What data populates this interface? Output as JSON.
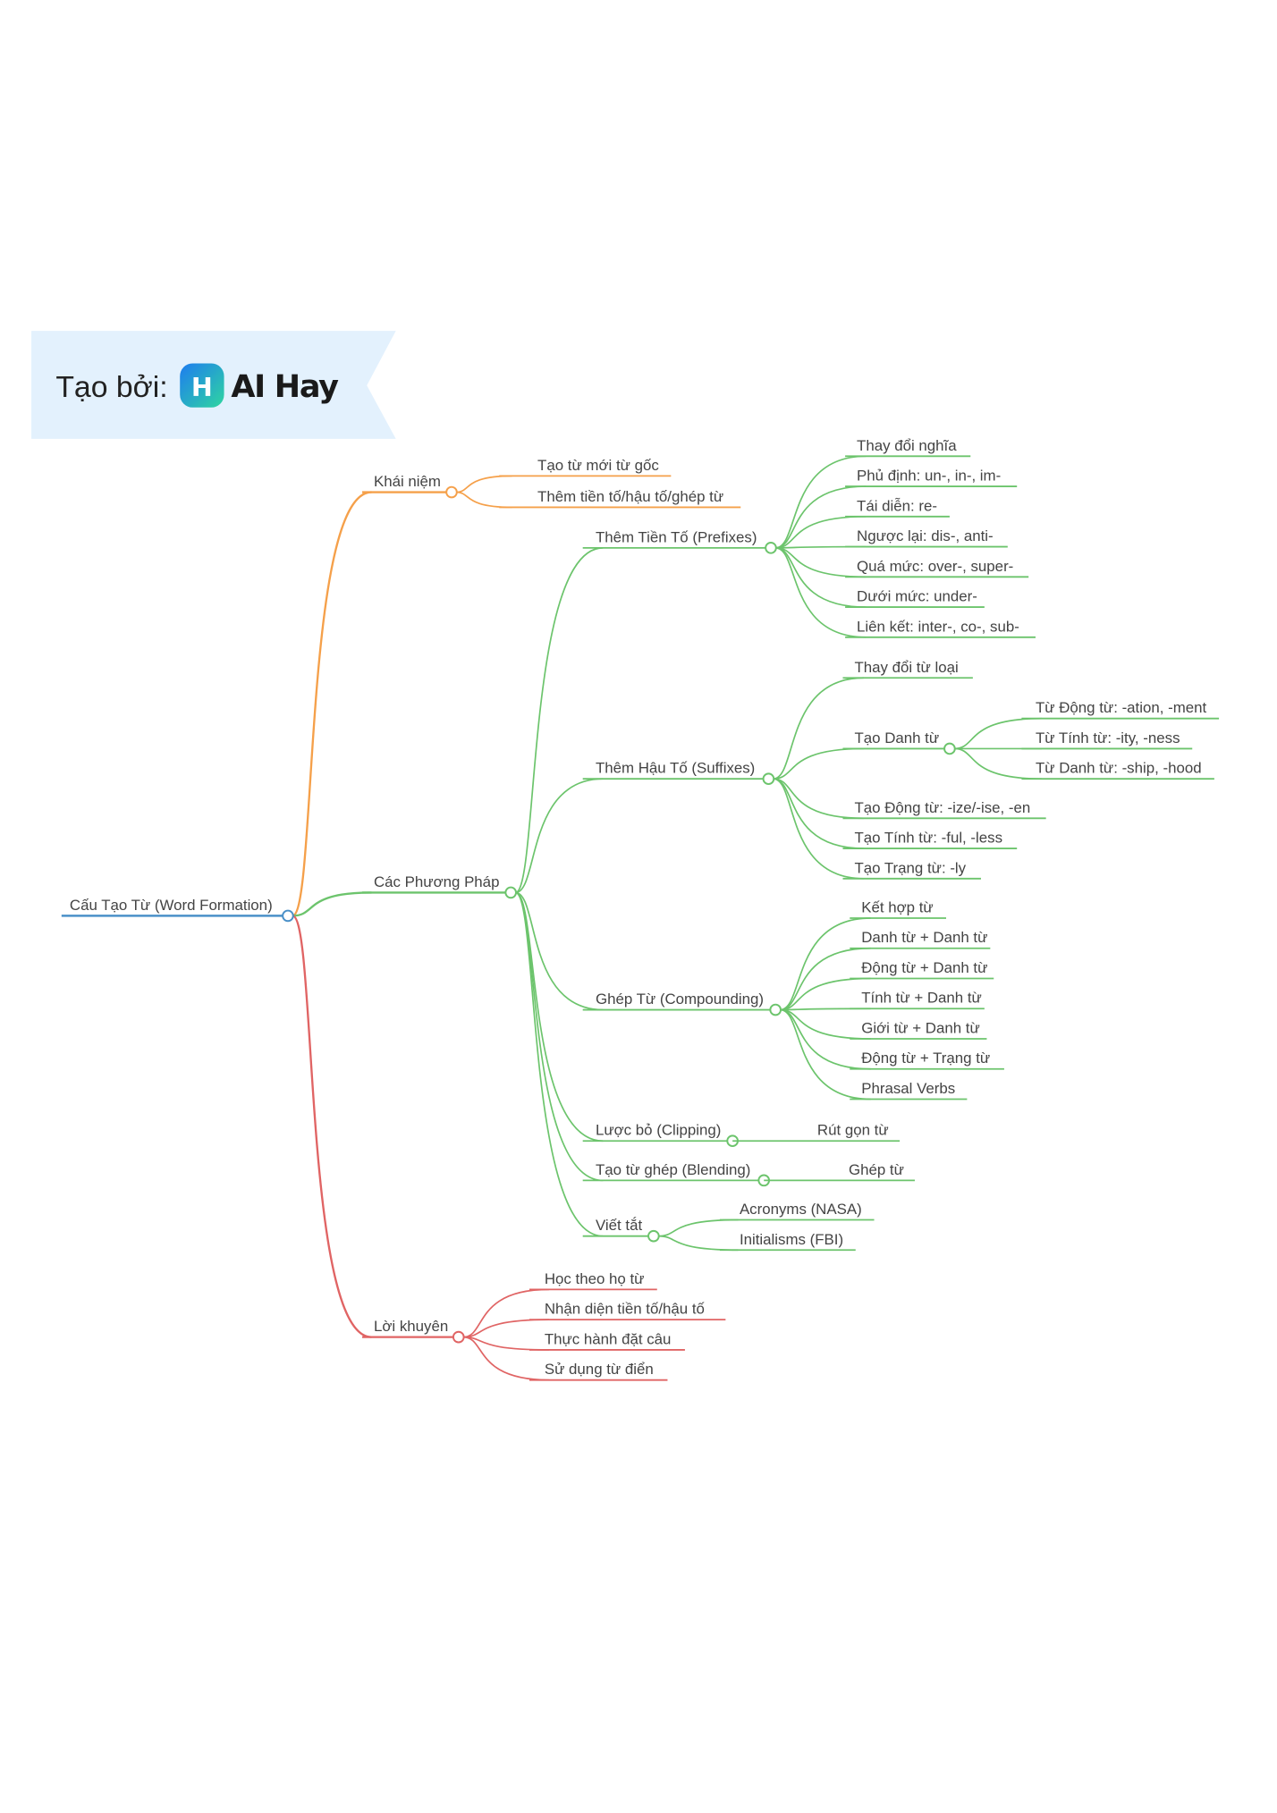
{
  "banner": {
    "created_by": "Tạo bởi:",
    "brand": "AI Hay",
    "logo_letter": "H",
    "background": "#e3f1fd"
  },
  "colors": {
    "root": "#4a90c8",
    "branch_1": "#f5a04a",
    "branch_2": "#6cc46c",
    "branch_3": "#e06464"
  },
  "mindmap": {
    "label": "Cấu Tạo Từ (Word Formation)",
    "children": [
      {
        "label": "Khái niệm",
        "children": [
          {
            "label": "Tạo từ mới từ gốc"
          },
          {
            "label": "Thêm tiền tố/hậu tố/ghép từ"
          }
        ]
      },
      {
        "label": "Các Phương Pháp",
        "children": [
          {
            "label": "Thêm Tiền Tố (Prefixes)",
            "children": [
              {
                "label": "Thay đổi nghĩa"
              },
              {
                "label": "Phủ định: un-, in-, im-"
              },
              {
                "label": "Tái diễn: re-"
              },
              {
                "label": "Ngược lại: dis-, anti-"
              },
              {
                "label": "Quá mức: over-, super-"
              },
              {
                "label": "Dưới mức: under-"
              },
              {
                "label": "Liên kết: inter-, co-, sub-"
              }
            ]
          },
          {
            "label": "Thêm Hậu Tố (Suffixes)",
            "children": [
              {
                "label": "Thay đổi từ loại"
              },
              {
                "label": "Tạo Danh từ",
                "children": [
                  {
                    "label": "Từ Động từ: -ation, -ment"
                  },
                  {
                    "label": "Từ Tính từ: -ity, -ness"
                  },
                  {
                    "label": "Từ Danh từ: -ship, -hood"
                  }
                ]
              },
              {
                "label": "Tạo Động từ: -ize/-ise, -en"
              },
              {
                "label": "Tạo Tính từ: -ful, -less"
              },
              {
                "label": "Tạo Trạng từ: -ly"
              }
            ]
          },
          {
            "label": "Ghép Từ (Compounding)",
            "children": [
              {
                "label": "Kết hợp từ"
              },
              {
                "label": "Danh từ + Danh từ"
              },
              {
                "label": "Động từ + Danh từ"
              },
              {
                "label": "Tính từ + Danh từ"
              },
              {
                "label": "Giới từ + Danh từ"
              },
              {
                "label": "Động từ + Trạng từ"
              },
              {
                "label": "Phrasal Verbs"
              }
            ]
          },
          {
            "label": "Lược bỏ (Clipping)",
            "children": [
              {
                "label": "Rút gọn từ"
              }
            ]
          },
          {
            "label": "Tạo từ ghép (Blending)",
            "children": [
              {
                "label": "Ghép từ"
              }
            ]
          },
          {
            "label": "Viết tắt",
            "children": [
              {
                "label": "Acronyms (NASA)"
              },
              {
                "label": "Initialisms (FBI)"
              }
            ]
          }
        ]
      },
      {
        "label": "Lời khuyên",
        "children": [
          {
            "label": "Học theo họ từ"
          },
          {
            "label": "Nhận diện tiền tố/hậu tố"
          },
          {
            "label": "Thực hành đặt câu"
          },
          {
            "label": "Sử dụng từ điển"
          }
        ]
      }
    ]
  }
}
